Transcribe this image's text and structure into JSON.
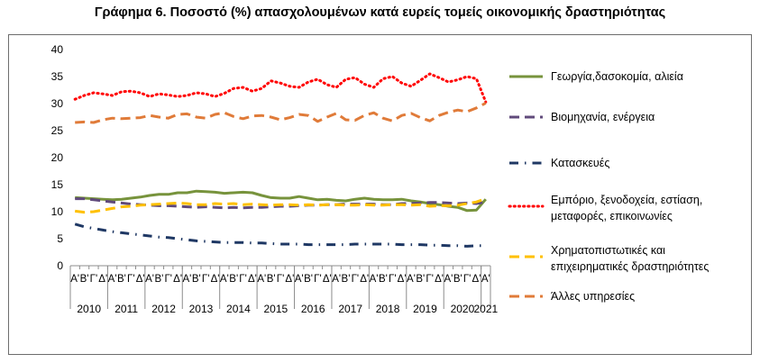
{
  "chart_data": {
    "type": "line",
    "title": "Γράφημα 6. Ποσοστό (%) απασχολουμένων κατά ευρείς τομείς οικονομικής δραστηριότητας",
    "xlabel": "",
    "ylabel": "",
    "ylim": [
      0,
      40
    ],
    "yticks": [
      0,
      5,
      10,
      15,
      20,
      25,
      30,
      35,
      40
    ],
    "grid": false,
    "legend_position": "right",
    "quarter_labels": [
      "Α'",
      "Β'",
      "Γ'",
      "Δ'"
    ],
    "years": [
      "2010",
      "2011",
      "2012",
      "2013",
      "2014",
      "2015",
      "2016",
      "2017",
      "2018",
      "2019",
      "2020",
      "2021"
    ],
    "x": [
      "2010 Α'",
      "2010 Β'",
      "2010 Γ'",
      "2010 Δ'",
      "2011 Α'",
      "2011 Β'",
      "2011 Γ'",
      "2011 Δ'",
      "2012 Α'",
      "2012 Β'",
      "2012 Γ'",
      "2012 Δ'",
      "2013 Α'",
      "2013 Β'",
      "2013 Γ'",
      "2013 Δ'",
      "2014 Α'",
      "2014 Β'",
      "2014 Γ'",
      "2014 Δ'",
      "2015 Α'",
      "2015 Β'",
      "2015 Γ'",
      "2015 Δ'",
      "2016 Α'",
      "2016 Β'",
      "2016 Γ'",
      "2016 Δ'",
      "2017 Α'",
      "2017 Β'",
      "2017 Γ'",
      "2017 Δ'",
      "2018 Α'",
      "2018 Β'",
      "2018 Γ'",
      "2018 Δ'",
      "2019 Α'",
      "2019 Β'",
      "2019 Γ'",
      "2019 Δ'",
      "2020 Α'",
      "2020 Β'",
      "2020 Γ'",
      "2020 Δ'",
      "2021 Α'"
    ],
    "series": [
      {
        "name": "Γεωργία,δασοκομία, αλιεία",
        "color": "#77933c",
        "dash": "solid",
        "values": [
          12.6,
          12.5,
          12.4,
          12.3,
          12.2,
          12.3,
          12.5,
          12.7,
          13.0,
          13.2,
          13.2,
          13.5,
          13.5,
          13.8,
          13.7,
          13.6,
          13.4,
          13.5,
          13.6,
          13.5,
          13.0,
          12.6,
          12.5,
          12.5,
          12.8,
          12.5,
          12.2,
          12.3,
          12.1,
          12.0,
          12.3,
          12.5,
          12.3,
          12.2,
          12.2,
          12.3,
          12.0,
          11.8,
          11.5,
          11.3,
          11.0,
          10.8,
          10.2,
          10.3,
          12.3
        ]
      },
      {
        "name": "Βιομηχανία, ενέργεια",
        "color": "#604a7b",
        "dash": "longdash",
        "values": [
          12.4,
          12.4,
          12.2,
          12.0,
          11.8,
          11.6,
          11.4,
          11.3,
          11.2,
          11.1,
          11.1,
          11.0,
          10.9,
          10.8,
          10.9,
          10.8,
          10.7,
          10.8,
          10.7,
          10.8,
          10.8,
          10.9,
          11.0,
          11.0,
          11.1,
          11.2,
          11.2,
          11.3,
          11.3,
          11.4,
          11.4,
          11.4,
          11.4,
          11.3,
          11.3,
          11.5,
          11.5,
          11.6,
          11.7,
          11.7,
          11.6,
          11.5,
          11.6,
          11.5,
          11.8
        ]
      },
      {
        "name": "Κατασκευές",
        "color": "#1f3864",
        "dash": "dashdot",
        "values": [
          7.7,
          7.2,
          6.9,
          6.6,
          6.3,
          6.1,
          5.9,
          5.7,
          5.5,
          5.3,
          5.2,
          5.0,
          4.8,
          4.6,
          4.5,
          4.4,
          4.3,
          4.3,
          4.3,
          4.2,
          4.2,
          4.1,
          4.0,
          4.0,
          4.0,
          3.9,
          3.9,
          3.9,
          3.9,
          3.9,
          4.0,
          4.0,
          4.0,
          4.0,
          4.0,
          3.9,
          3.9,
          3.9,
          3.8,
          3.8,
          3.7,
          3.7,
          3.6,
          3.7,
          3.7
        ]
      },
      {
        "name": "Εμπόριο, ξενοδοχεία, εστίαση, μεταφορές, επικοινωνίες",
        "color": "#ff0000",
        "dash": "dotted",
        "values": [
          30.8,
          31.5,
          32.0,
          31.8,
          31.5,
          32.2,
          32.3,
          32.0,
          31.3,
          31.8,
          31.6,
          31.3,
          31.5,
          32.0,
          31.8,
          31.3,
          31.9,
          32.8,
          33.0,
          32.3,
          32.8,
          34.2,
          33.8,
          33.2,
          33.0,
          34.0,
          34.5,
          33.5,
          33.0,
          34.5,
          34.8,
          33.6,
          33.0,
          34.6,
          35.0,
          33.8,
          33.2,
          34.3,
          35.5,
          34.8,
          34.0,
          34.4,
          35.0,
          34.6,
          30.3
        ]
      },
      {
        "name": "Χρηματοπιστωτικές και επιχειρηματικές δραστηριότητες",
        "color": "#ffc000",
        "dash": "longdash",
        "values": [
          10.1,
          9.9,
          10.0,
          10.3,
          10.6,
          10.9,
          11.0,
          11.2,
          11.3,
          11.4,
          11.5,
          11.6,
          11.5,
          11.3,
          11.3,
          11.5,
          11.4,
          11.5,
          11.3,
          11.4,
          11.3,
          11.2,
          11.3,
          11.3,
          11.2,
          11.3,
          11.2,
          11.3,
          11.3,
          11.2,
          11.2,
          11.3,
          11.2,
          11.2,
          11.3,
          11.3,
          11.2,
          11.3,
          11.0,
          11.1,
          11.1,
          11.2,
          11.5,
          11.8,
          12.4
        ]
      },
      {
        "name": "Άλλες υπηρεσίες",
        "color": "#e07b39",
        "dash": "longdash",
        "values": [
          26.5,
          26.6,
          26.5,
          27.0,
          27.3,
          27.2,
          27.3,
          27.4,
          27.8,
          27.5,
          27.3,
          28.0,
          28.1,
          27.5,
          27.3,
          28.0,
          28.3,
          27.6,
          27.2,
          27.7,
          27.8,
          27.5,
          27.0,
          27.4,
          28.0,
          27.8,
          26.7,
          27.5,
          28.2,
          27.0,
          26.9,
          27.8,
          28.3,
          27.3,
          26.8,
          27.8,
          28.2,
          27.4,
          26.8,
          27.8,
          28.4,
          28.8,
          28.5,
          29.2,
          30.1
        ]
      }
    ]
  }
}
